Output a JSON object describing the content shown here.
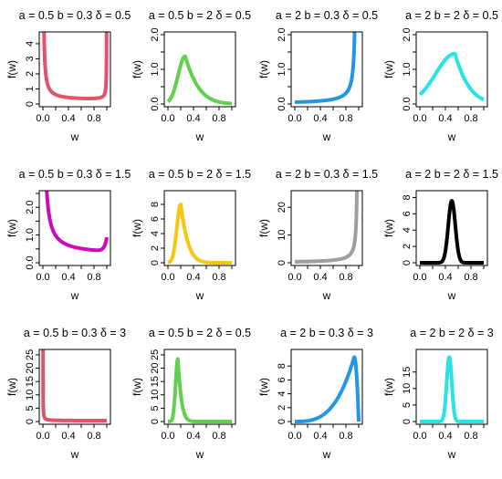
{
  "chart_data": [
    {
      "type": "line",
      "title": "a = 0.5  b = 0.3  δ = 0.5",
      "xlabel": "w",
      "ylabel": "f(w)",
      "xlim": [
        0,
        1
      ],
      "ylim": [
        0,
        4.6
      ],
      "xticks": [
        0,
        0.2,
        0.4,
        0.6,
        0.8,
        1
      ],
      "xtick_labels": [
        "0.0",
        "",
        "0.4",
        "",
        "0.8",
        ""
      ],
      "yticks": [
        0,
        1,
        2,
        3,
        4
      ],
      "ytick_labels": [
        "0",
        "1",
        "2",
        "3",
        "4"
      ],
      "color": "#DF536B",
      "shape": "ushape",
      "params": [
        0.08,
        0.21,
        0.96,
        0.0125
      ],
      "x": [
        0,
        0.01,
        0.02,
        0.05,
        0.1,
        0.2,
        0.3,
        0.4,
        0.5,
        0.6,
        0.7,
        0.8,
        0.9,
        0.95,
        0.98,
        0.99,
        1
      ],
      "y": [
        4.6,
        1.59,
        0.87,
        0.47,
        0.33,
        0.24,
        0.21,
        0.2,
        0.21,
        0.23,
        0.28,
        0.38,
        0.71,
        1.4,
        3.3,
        4.6,
        4.6
      ]
    },
    {
      "type": "line",
      "title": "a = 0.5  b = 2  δ = 0.5",
      "xlabel": "w",
      "ylabel": "f(w)",
      "xlim": [
        0,
        1
      ],
      "ylim": [
        0,
        2.0
      ],
      "xticks": [
        0,
        0.2,
        0.4,
        0.6,
        0.8,
        1
      ],
      "xtick_labels": [
        "0.0",
        "",
        "0.4",
        "",
        "0.8",
        ""
      ],
      "yticks": [
        0,
        0.5,
        1.0,
        1.5,
        2.0
      ],
      "ytick_labels": [
        "0.0",
        "",
        "1.0",
        "",
        "2.0"
      ],
      "color": "#61D04F",
      "shape": "gamma",
      "params": [
        0.27,
        1.38,
        0.11,
        7.5,
        0.22
      ],
      "x": [
        0,
        0.05,
        0.1,
        0.15,
        0.2,
        0.27,
        0.35,
        0.45,
        0.55,
        0.65,
        0.75,
        0.85,
        1
      ],
      "y": [
        0,
        0.05,
        0.22,
        0.62,
        1.1,
        1.38,
        1.28,
        0.98,
        0.69,
        0.45,
        0.29,
        0.18,
        0.08
      ]
    },
    {
      "type": "line",
      "title": "a = 2  b = 0.3  δ = 0.5",
      "xlabel": "w",
      "ylabel": "f(w)",
      "xlim": [
        0,
        1
      ],
      "ylim": [
        0,
        2.0
      ],
      "xticks": [
        0,
        0.2,
        0.4,
        0.6,
        0.8,
        1
      ],
      "xtick_labels": [
        "0.0",
        "",
        "0.4",
        "",
        "0.8",
        ""
      ],
      "yticks": [
        0,
        0.5,
        1.0,
        1.5,
        2.0
      ],
      "ytick_labels": [
        "0.0",
        "",
        "1.0",
        "",
        "2.0"
      ],
      "color": "#2297E6",
      "shape": "rightspike",
      "params": [
        0.96,
        2.0,
        0.05,
        1.5,
        0
      ],
      "x": [
        0,
        0.2,
        0.4,
        0.6,
        0.7,
        0.8,
        0.85,
        0.9,
        0.93,
        0.95,
        0.97
      ],
      "y": [
        0.01,
        0.03,
        0.06,
        0.12,
        0.19,
        0.31,
        0.42,
        0.62,
        0.9,
        1.3,
        2.0
      ]
    },
    {
      "type": "line",
      "title": "a = 2  b = 2  δ = 0.5",
      "xlabel": "w",
      "ylabel": "f(w)",
      "xlim": [
        0,
        1
      ],
      "ylim": [
        0,
        2.0
      ],
      "xticks": [
        0,
        0.2,
        0.4,
        0.6,
        0.8,
        1
      ],
      "xtick_labels": [
        "0.0",
        "",
        "0.4",
        "",
        "0.8",
        ""
      ],
      "yticks": [
        0,
        0.5,
        1.0,
        1.5,
        2.0
      ],
      "ytick_labels": [
        "0.0",
        "",
        "1.0",
        "",
        "2.0"
      ],
      "color": "#28E2E5",
      "shape": "gamma",
      "params": [
        0.55,
        1.45,
        0.3,
        15,
        0.23
      ],
      "x": [
        0,
        0.3,
        0.35,
        0.4,
        0.45,
        0.5,
        0.55,
        0.6,
        0.7,
        0.8,
        0.9,
        1
      ],
      "y": [
        0,
        0,
        0.07,
        0.36,
        0.84,
        1.27,
        1.45,
        1.38,
        0.85,
        0.38,
        0.13,
        0.04
      ]
    },
    {
      "type": "line",
      "title": "a = 0.5  b = 0.3  δ = 1.5",
      "xlabel": "w",
      "ylabel": "f(w)",
      "xlim": [
        0,
        1
      ],
      "ylim": [
        0,
        2.5
      ],
      "xticks": [
        0,
        0.2,
        0.4,
        0.6,
        0.8,
        1
      ],
      "xtick_labels": [
        "0.0",
        "",
        "0.4",
        "",
        "0.8",
        ""
      ],
      "yticks": [
        0,
        0.5,
        1.0,
        1.5,
        2.0,
        2.5
      ],
      "ytick_labels": [
        "0.0",
        "",
        "1.0",
        "",
        "2.0",
        ""
      ],
      "color": "#CD0BBC",
      "shape": "leftdecay",
      "params": [
        0.14,
        0.28,
        0.035,
        0.5
      ],
      "x": [
        0,
        0.02,
        0.05,
        0.1,
        0.2,
        0.3,
        0.4,
        0.5,
        0.6,
        0.7,
        0.8,
        0.9,
        0.98,
        1
      ],
      "y": [
        2.5,
        2.5,
        1.62,
        0.98,
        0.58,
        0.42,
        0.35,
        0.31,
        0.29,
        0.28,
        0.29,
        0.3,
        0.48,
        0.5
      ]
    },
    {
      "type": "line",
      "title": "a = 0.5  b = 2  δ = 1.5",
      "xlabel": "w",
      "ylabel": "f(w)",
      "xlim": [
        0,
        1
      ],
      "ylim": [
        0,
        9.5
      ],
      "xticks": [
        0,
        0.2,
        0.4,
        0.6,
        0.8,
        1
      ],
      "xtick_labels": [
        "0.0",
        "",
        "0.4",
        "",
        "0.8",
        ""
      ],
      "yticks": [
        0,
        2,
        4,
        6,
        8
      ],
      "ytick_labels": [
        "0",
        "2",
        "4",
        "6",
        "8"
      ],
      "color": "#F5C710",
      "shape": "gamma",
      "params": [
        0.2,
        8.0,
        0.06,
        20,
        0.12
      ],
      "x": [
        0,
        0.05,
        0.1,
        0.15,
        0.2,
        0.25,
        0.3,
        0.4,
        0.5,
        0.6,
        1
      ],
      "y": [
        0,
        0.03,
        0.8,
        4.6,
        8.0,
        6.6,
        3.8,
        0.7,
        0.08,
        0.01,
        0
      ]
    },
    {
      "type": "line",
      "title": "a = 2  b = 0.3  δ = 1.5",
      "xlabel": "w",
      "ylabel": "f(w)",
      "xlim": [
        0,
        1
      ],
      "ylim": [
        0,
        25
      ],
      "xticks": [
        0,
        0.2,
        0.4,
        0.6,
        0.8,
        1
      ],
      "xtick_labels": [
        "0.0",
        "",
        "0.4",
        "",
        "0.8",
        ""
      ],
      "yticks": [
        0,
        10,
        20
      ],
      "ytick_labels": [
        "0",
        "10",
        "20"
      ],
      "color": "#9E9E9E",
      "shape": "rightspike",
      "params": [
        0.985,
        18,
        0.04,
        1.4,
        0
      ],
      "x": [
        0,
        0.2,
        0.4,
        0.6,
        0.7,
        0.8,
        0.9,
        0.95,
        0.97,
        0.98
      ],
      "y": [
        0,
        0.2,
        0.45,
        0.9,
        1.4,
        2.3,
        4.7,
        9.5,
        15.5,
        25
      ]
    },
    {
      "type": "line",
      "title": "a = 2  b = 2  δ = 1.5",
      "xlabel": "w",
      "ylabel": "f(w)",
      "xlim": [
        0,
        1
      ],
      "ylim": [
        0,
        8.5
      ],
      "xticks": [
        0,
        0.2,
        0.4,
        0.6,
        0.8,
        1
      ],
      "xtick_labels": [
        "0.0",
        "",
        "0.4",
        "",
        "0.8",
        ""
      ],
      "yticks": [
        0,
        2,
        4,
        6,
        8
      ],
      "ytick_labels": [
        "0",
        "2",
        "4",
        "6",
        "8"
      ],
      "color": "#000000",
      "shape": "gauss",
      "params": [
        0.5,
        7.6,
        0.055
      ],
      "x": [
        0,
        0.3,
        0.35,
        0.4,
        0.45,
        0.5,
        0.55,
        0.6,
        0.65,
        0.7,
        1
      ],
      "y": [
        0,
        0,
        0.18,
        1.45,
        5.3,
        7.6,
        5.3,
        1.45,
        0.18,
        0,
        0
      ]
    },
    {
      "type": "line",
      "title": "a = 0.5  b = 0.3  δ = 3",
      "xlabel": "w",
      "ylabel": "f(w)",
      "xlim": [
        0,
        1
      ],
      "ylim": [
        0,
        26
      ],
      "xticks": [
        0,
        0.2,
        0.4,
        0.6,
        0.8,
        1
      ],
      "xtick_labels": [
        "0.0",
        "",
        "0.4",
        "",
        "0.8",
        ""
      ],
      "yticks": [
        0,
        5,
        10,
        15,
        20,
        25
      ],
      "ytick_labels": [
        "0",
        "5",
        "10",
        "15",
        "20",
        "25"
      ],
      "color": "#DF536B",
      "shape": "leftdecay",
      "params": [
        0.03,
        0.3,
        0.018,
        0
      ],
      "x": [
        0,
        0.01,
        0.02,
        0.05,
        0.1,
        0.2,
        0.4,
        0.6,
        0.8,
        1
      ],
      "y": [
        26,
        26,
        13,
        4.2,
        1.6,
        0.8,
        0.5,
        0.4,
        0.35,
        0.32
      ]
    },
    {
      "type": "line",
      "title": "a = 0.5  b = 2  δ = 0.5",
      "xlabel": "w",
      "ylabel": "f(w)",
      "xlim": [
        0,
        1
      ],
      "ylim": [
        0,
        26
      ],
      "xticks": [
        0,
        0.2,
        0.4,
        0.6,
        0.8,
        1
      ],
      "xtick_labels": [
        "0.0",
        "",
        "0.4",
        "",
        "0.8",
        ""
      ],
      "yticks": [
        0,
        5,
        10,
        15,
        20,
        25
      ],
      "ytick_labels": [
        "0",
        "5",
        "10",
        "15",
        "20",
        "25"
      ],
      "color": "#61D04F",
      "shape": "gamma",
      "params": [
        0.155,
        23.5,
        0.035,
        40,
        0.06
      ],
      "x": [
        0,
        0.05,
        0.1,
        0.13,
        0.155,
        0.18,
        0.2,
        0.25,
        0.3,
        0.4,
        1
      ],
      "y": [
        0,
        0,
        2,
        14,
        23.5,
        18.5,
        11.5,
        2.5,
        0.5,
        0.02,
        0
      ]
    },
    {
      "type": "line",
      "title": "a = 2  b = 0.3  δ = 3",
      "xlabel": "w",
      "ylabel": "f(w)",
      "xlim": [
        0,
        1
      ],
      "ylim": [
        0,
        10
      ],
      "xticks": [
        0,
        0.2,
        0.4,
        0.6,
        0.8,
        1
      ],
      "xtick_labels": [
        "0.0",
        "",
        "0.4",
        "",
        "0.8",
        ""
      ],
      "yticks": [
        0,
        2,
        4,
        6,
        8
      ],
      "ytick_labels": [
        "0",
        "2",
        "4",
        "6",
        "8"
      ],
      "color": "#2297E6",
      "shape": "skewright",
      "params": [
        0.93,
        9.3,
        2.4
      ],
      "x": [
        0,
        0.1,
        0.2,
        0.3,
        0.4,
        0.5,
        0.6,
        0.7,
        0.8,
        0.9,
        0.93,
        0.95,
        0.97,
        0.985,
        1
      ],
      "y": [
        0,
        0.3,
        0.9,
        1.6,
        2.4,
        3.3,
        4.3,
        5.6,
        7.2,
        9.0,
        9.3,
        8.6,
        5.8,
        2.2,
        0
      ]
    },
    {
      "type": "line",
      "title": "a = 2  b = 2  δ = 3",
      "xlabel": "w",
      "ylabel": "f(w)",
      "xlim": [
        0,
        1
      ],
      "ylim": [
        0,
        21
      ],
      "xticks": [
        0,
        0.2,
        0.4,
        0.6,
        0.8,
        1
      ],
      "xtick_labels": [
        "0.0",
        "",
        "0.4",
        "",
        "0.8",
        ""
      ],
      "yticks": [
        0,
        5,
        10,
        15
      ],
      "ytick_labels": [
        "0",
        "5",
        "10",
        "15"
      ],
      "color": "#28E2E5",
      "shape": "gauss",
      "params": [
        0.46,
        19.5,
        0.04
      ],
      "x": [
        0,
        0.3,
        0.35,
        0.4,
        0.43,
        0.46,
        0.49,
        0.52,
        0.55,
        0.6,
        1
      ],
      "y": [
        0,
        0,
        0.4,
        6.4,
        14.7,
        19.5,
        14.7,
        6.4,
        1.6,
        0.1,
        0
      ]
    }
  ]
}
